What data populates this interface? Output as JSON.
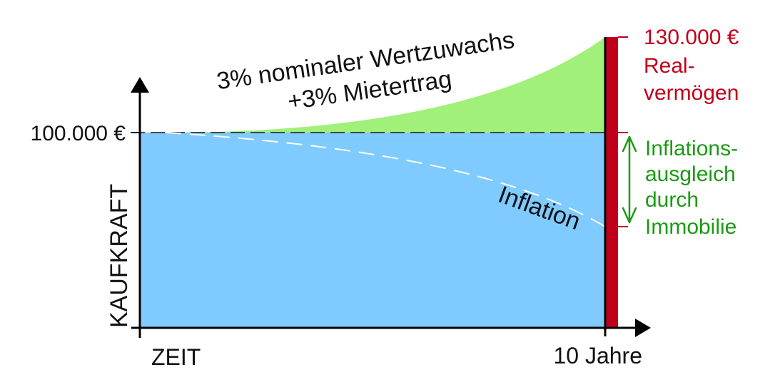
{
  "labels": {
    "start_value": "100.000 €",
    "y_axis": "KAUFKRAFT",
    "x_axis_start": "ZEIT",
    "x_axis_end": "10 Jahre",
    "growth_line1": "3% nominaler Wertzuwachs",
    "growth_line2": "+3% Mietertrag",
    "inflation": "Inflation",
    "real_value": "130.000 €",
    "real_line1": "Real-",
    "real_line2": "vermögen",
    "offset_line1": "Inflations-",
    "offset_line2": "ausgleich",
    "offset_line3": "durch",
    "offset_line4": "Immobilie"
  },
  "colors": {
    "kaufkraft_area": "#7fcbff",
    "growth_area": "#a0f07a",
    "real_bar": "#c0001a",
    "offset_green": "#1a9a14",
    "axis": "#000000"
  }
}
